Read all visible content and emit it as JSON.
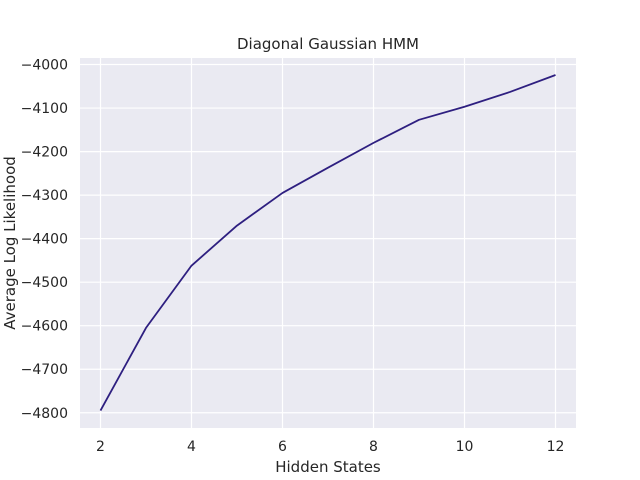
{
  "chart_data": {
    "type": "line",
    "title": "Diagonal Gaussian HMM",
    "xlabel": "Hidden States",
    "ylabel": "Average Log Likelihood",
    "x": [
      2,
      3,
      4,
      5,
      6,
      7,
      8,
      9,
      10,
      11,
      12
    ],
    "series": [
      {
        "values": [
          -4795,
          -4605,
          -4462,
          -4370,
          -4295,
          -4237,
          -4180,
          -4127,
          -4097,
          -4063,
          -4024
        ],
        "color": "#2e1f80"
      }
    ],
    "xlim": [
      1.55,
      12.45
    ],
    "ylim": [
      -4835,
      -3985
    ],
    "xticks": [
      2,
      4,
      6,
      8,
      10,
      12
    ],
    "yticks": [
      -4800,
      -4700,
      -4600,
      -4500,
      -4400,
      -4300,
      -4200,
      -4100,
      -4000
    ],
    "xtick_labels": [
      "2",
      "4",
      "6",
      "8",
      "10",
      "12"
    ],
    "ytick_labels": [
      "−4800",
      "−4700",
      "−4600",
      "−4500",
      "−4400",
      "−4300",
      "−4200",
      "−4100",
      "−4000"
    ],
    "grid": true,
    "background": "#eaeaf2",
    "grid_color": "#ffffff"
  }
}
